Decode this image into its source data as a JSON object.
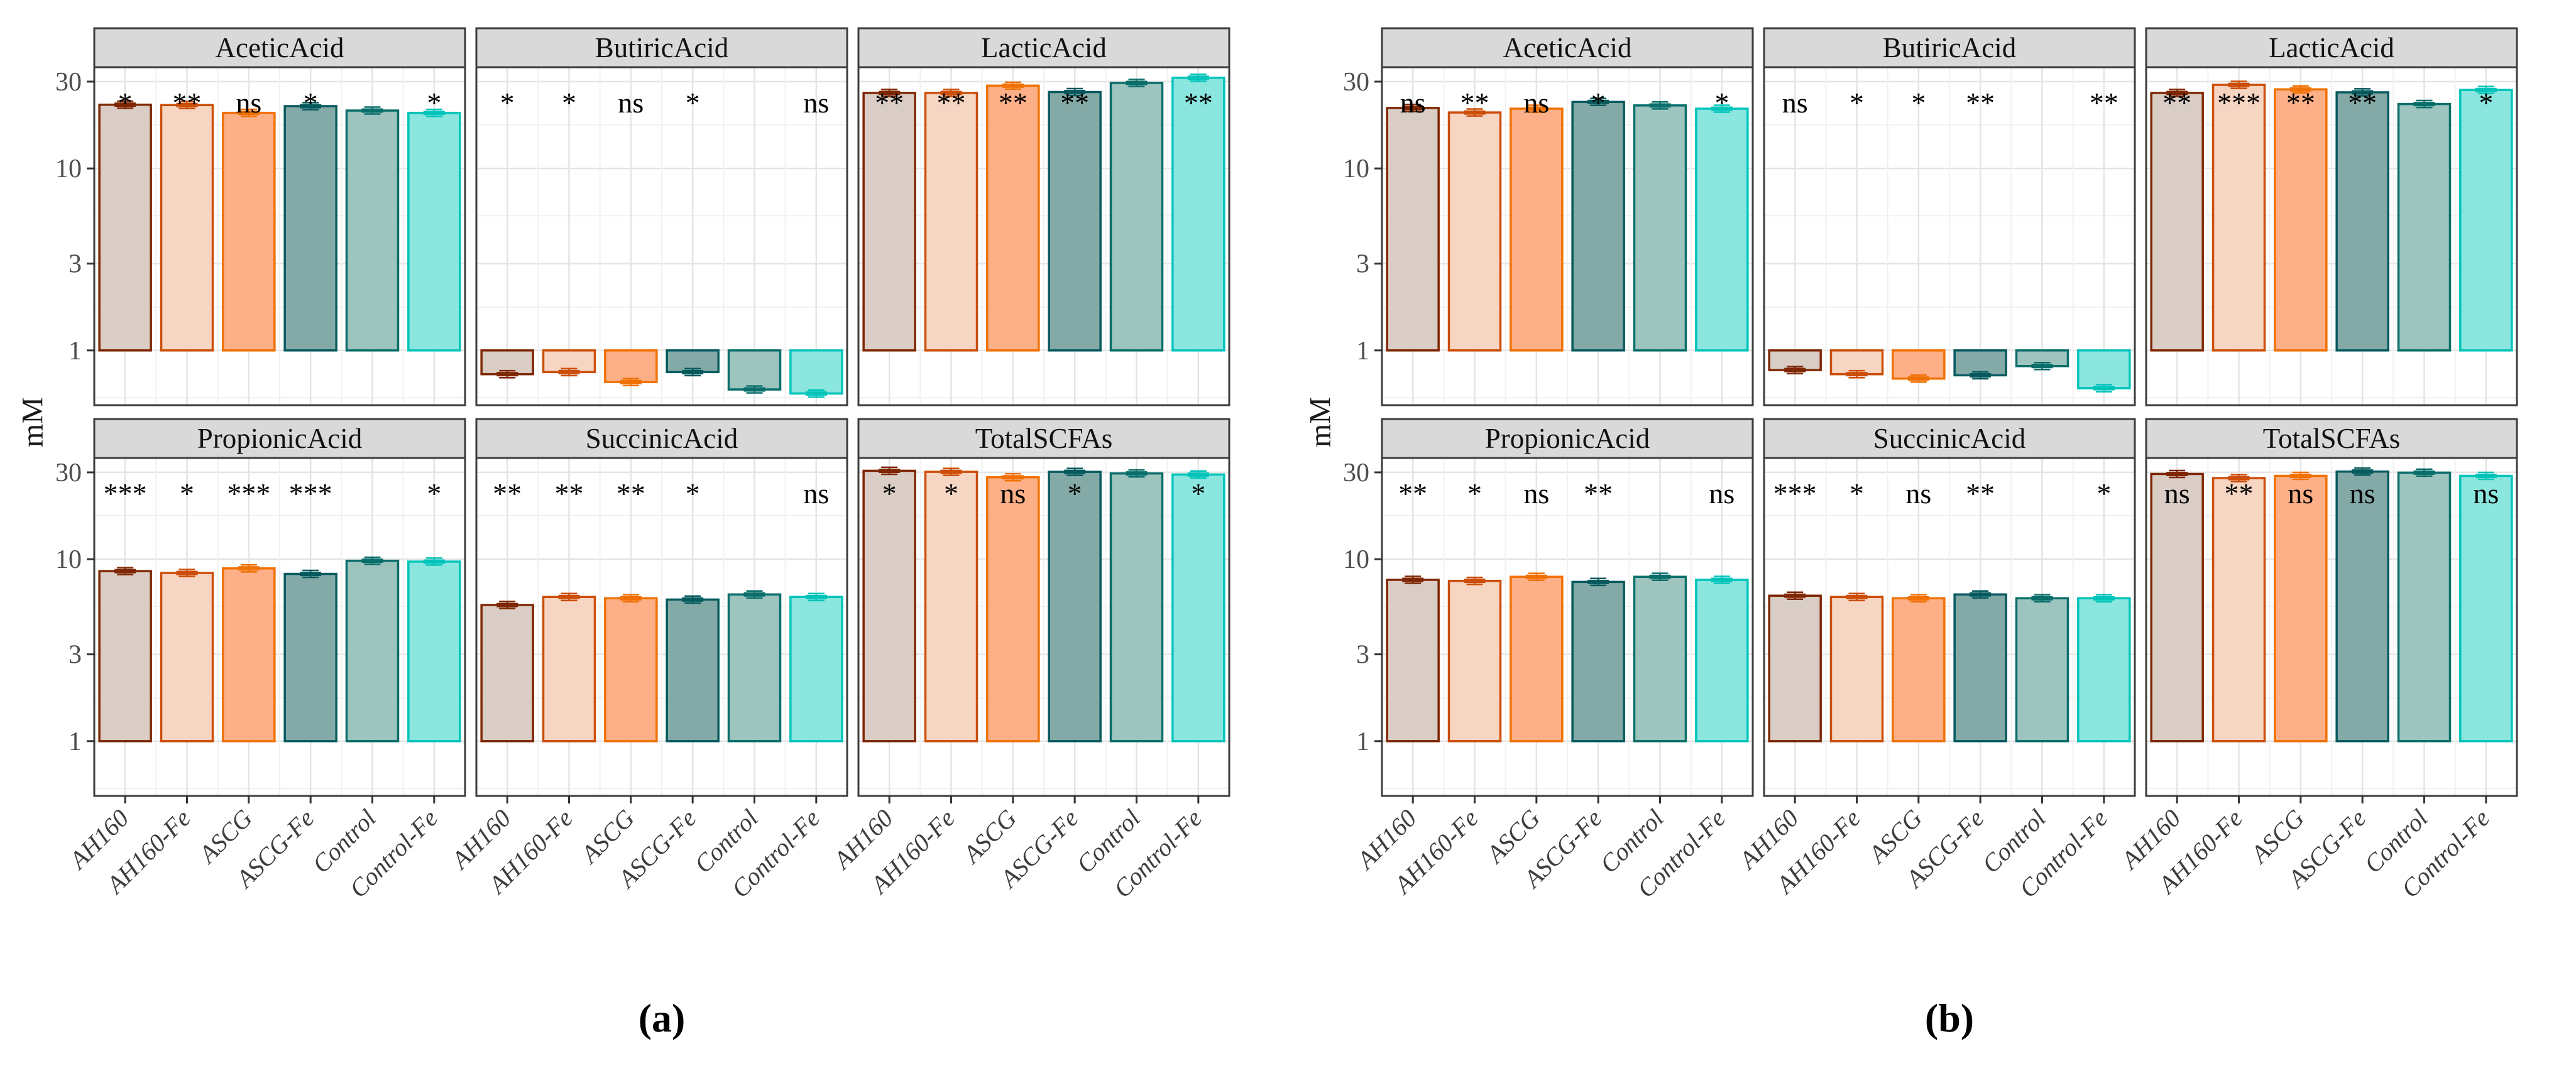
{
  "figure": {
    "facet_header_fill": "#d9d9d9",
    "panel_border_color": "#3c3c3c",
    "axis_text_color": "#4d4d4d",
    "significance_color": "#000000",
    "grid": {
      "major_y": [
        1,
        3,
        10,
        30
      ],
      "minor_y": [
        0.55,
        1.73,
        5.5,
        17.4
      ],
      "major_color": "#e4e4e4",
      "minor_color": "#f1f1f1"
    },
    "y_tick_values": [
      30,
      10,
      3,
      1
    ],
    "series_style": {
      "AH160": {
        "stroke": "#7f2704",
        "fill": "#d9cdc5"
      },
      "AH160-Fe": {
        "stroke": "#cc4e08",
        "fill": "#f6d5c3"
      },
      "ASCG": {
        "stroke": "#f07103",
        "fill": "#fdb088"
      },
      "ASCG-Fe": {
        "stroke": "#065a5e",
        "fill": "#84aaa7"
      },
      "Control": {
        "stroke": "#0a6e6a",
        "fill": "#9dc4bf"
      },
      "Control-Fe": {
        "stroke": "#00c4ba",
        "fill": "#8ae6de"
      }
    }
  },
  "chart_data": [
    {
      "type": "bar",
      "panel": "a",
      "caption": "(a)",
      "ylabel": "mM",
      "yscale": "log",
      "ylim": [
        0.5,
        36
      ],
      "yticks": [
        1,
        3,
        10,
        30
      ],
      "grid": true,
      "legend_position": "none",
      "categories": [
        "AH160",
        "AH160-Fe",
        "ASCG",
        "ASCG-Fe",
        "Control",
        "Control-Fe"
      ],
      "facets": [
        {
          "title": "AceticAcid",
          "values": [
            22.4,
            22.3,
            20.2,
            22.0,
            20.8,
            20.2
          ],
          "significance": [
            "*",
            "**",
            "ns",
            "*",
            null,
            "*"
          ]
        },
        {
          "title": "ButiricAcid",
          "values": [
            0.74,
            0.76,
            0.67,
            0.76,
            0.61,
            0.58
          ],
          "significance": [
            "*",
            "*",
            "ns",
            "*",
            null,
            "ns"
          ]
        },
        {
          "title": "LacticAcid",
          "values": [
            26.0,
            26.0,
            28.5,
            26.3,
            29.5,
            31.5
          ],
          "significance": [
            "**",
            "**",
            "**",
            "**",
            null,
            "**"
          ]
        },
        {
          "title": "PropionicAcid",
          "values": [
            8.6,
            8.4,
            8.9,
            8.3,
            9.8,
            9.7
          ],
          "significance": [
            "***",
            "*",
            "***",
            "***",
            null,
            "*"
          ]
        },
        {
          "title": "SuccinicAcid",
          "values": [
            5.6,
            6.2,
            6.1,
            6.0,
            6.4,
            6.2
          ],
          "significance": [
            "**",
            "**",
            "**",
            "*",
            null,
            "ns"
          ]
        },
        {
          "title": "TotalSCFAs",
          "values": [
            30.6,
            30.2,
            28.2,
            30.2,
            29.6,
            29.2
          ],
          "significance": [
            "*",
            "*",
            "ns",
            "*",
            null,
            "*"
          ]
        }
      ]
    },
    {
      "type": "bar",
      "panel": "b",
      "caption": "(b)",
      "ylabel": "mM",
      "yscale": "log",
      "ylim": [
        0.5,
        36
      ],
      "yticks": [
        1,
        3,
        10,
        30
      ],
      "grid": true,
      "legend_position": "none",
      "categories": [
        "AH160",
        "AH160-Fe",
        "ASCG",
        "ASCG-Fe",
        "Control",
        "Control-Fe"
      ],
      "facets": [
        {
          "title": "AceticAcid",
          "values": [
            21.5,
            20.3,
            21.3,
            23.2,
            22.2,
            21.3
          ],
          "significance": [
            "ns",
            "**",
            "ns",
            "*",
            null,
            "*"
          ]
        },
        {
          "title": "ButiricAcid",
          "values": [
            0.78,
            0.74,
            0.7,
            0.73,
            0.82,
            0.62
          ],
          "significance": [
            "ns",
            "*",
            "*",
            "**",
            null,
            "**"
          ]
        },
        {
          "title": "LacticAcid",
          "values": [
            26.0,
            28.8,
            27.2,
            26.2,
            22.6,
            27.0
          ],
          "significance": [
            "**",
            "***",
            "**",
            "**",
            null,
            "*"
          ]
        },
        {
          "title": "PropionicAcid",
          "values": [
            7.7,
            7.6,
            8.0,
            7.5,
            8.0,
            7.7
          ],
          "significance": [
            "**",
            "*",
            "ns",
            "**",
            null,
            "ns"
          ]
        },
        {
          "title": "SuccinicAcid",
          "values": [
            6.3,
            6.2,
            6.1,
            6.4,
            6.1,
            6.1
          ],
          "significance": [
            "***",
            "*",
            "ns",
            "**",
            null,
            "*"
          ]
        },
        {
          "title": "TotalSCFAs",
          "values": [
            29.4,
            27.9,
            28.7,
            30.3,
            29.9,
            28.7
          ],
          "significance": [
            "ns",
            "**",
            "ns",
            "ns",
            null,
            "ns"
          ]
        }
      ]
    }
  ]
}
